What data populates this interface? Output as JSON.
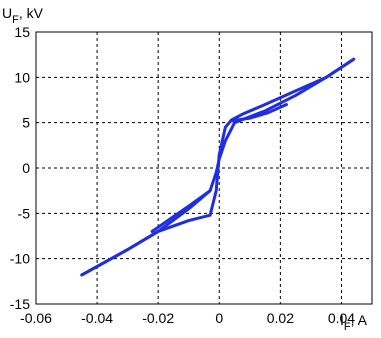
{
  "chart_data": {
    "type": "line",
    "title": "",
    "xlabel": {
      "main": "I",
      "sub": "F",
      "unit": ", A"
    },
    "ylabel": {
      "main": "U",
      "sub": "F",
      "unit": ", kV"
    },
    "xlim": [
      -0.06,
      0.05
    ],
    "ylim": [
      -15,
      15
    ],
    "xticks": [
      -0.06,
      -0.04,
      -0.02,
      0,
      0.02,
      0.04
    ],
    "xtick_labels": [
      "-0.06",
      "-0.04",
      "-0.02",
      "0",
      "0.02",
      "0.04"
    ],
    "yticks": [
      -15,
      -10,
      -5,
      0,
      5,
      10,
      15
    ],
    "ytick_labels": [
      "-15",
      "-10",
      "-5",
      "0",
      "5",
      "10",
      "15"
    ],
    "grid": true,
    "color": "#1f2ee0",
    "series": [
      {
        "x": [
          -0.045,
          -0.03,
          -0.02,
          -0.01,
          -0.003,
          -0.001,
          0,
          0.002,
          0.005,
          0.015,
          0.025,
          0.035,
          0.044
        ],
        "y": [
          -11.8,
          -9.0,
          -7.0,
          -4.5,
          -2.5,
          -0.5,
          1.0,
          3.0,
          5.0,
          6.3,
          8.0,
          10.0,
          12.0
        ]
      },
      {
        "x": [
          0.044,
          0.035,
          0.025,
          0.015,
          0.008,
          0.004,
          0.002,
          0.0,
          -0.001,
          -0.003,
          -0.01,
          -0.02,
          -0.03,
          -0.045
        ],
        "y": [
          12.0,
          10.0,
          8.5,
          7.0,
          6.0,
          5.3,
          4.5,
          1.5,
          -2.5,
          -5.2,
          -5.8,
          -7.0,
          -9.0,
          -11.8
        ]
      },
      {
        "x": [
          0.004,
          0.01,
          0.016,
          0.022
        ],
        "y": [
          5.2,
          5.5,
          6.1,
          7.0
        ]
      },
      {
        "x": [
          -0.003,
          -0.01,
          -0.016,
          -0.022
        ],
        "y": [
          -2.5,
          -4.2,
          -5.6,
          -7.0
        ]
      }
    ]
  }
}
